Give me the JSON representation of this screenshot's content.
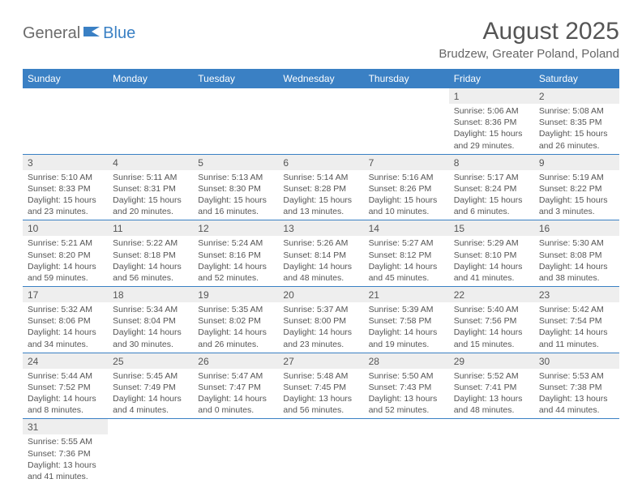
{
  "logo": {
    "part1": "General",
    "part2": "Blue"
  },
  "title": "August 2025",
  "location": "Brudzew, Greater Poland, Poland",
  "colors": {
    "header_bg": "#3a80c4",
    "header_text": "#ffffff",
    "daynum_bg": "#eeeeee",
    "border": "#3a80c4",
    "text": "#555555"
  },
  "weekdays": [
    "Sunday",
    "Monday",
    "Tuesday",
    "Wednesday",
    "Thursday",
    "Friday",
    "Saturday"
  ],
  "weeks": [
    [
      null,
      null,
      null,
      null,
      null,
      {
        "d": "1",
        "sr": "5:06 AM",
        "ss": "8:36 PM",
        "dl": "15 hours and 29 minutes."
      },
      {
        "d": "2",
        "sr": "5:08 AM",
        "ss": "8:35 PM",
        "dl": "15 hours and 26 minutes."
      }
    ],
    [
      {
        "d": "3",
        "sr": "5:10 AM",
        "ss": "8:33 PM",
        "dl": "15 hours and 23 minutes."
      },
      {
        "d": "4",
        "sr": "5:11 AM",
        "ss": "8:31 PM",
        "dl": "15 hours and 20 minutes."
      },
      {
        "d": "5",
        "sr": "5:13 AM",
        "ss": "8:30 PM",
        "dl": "15 hours and 16 minutes."
      },
      {
        "d": "6",
        "sr": "5:14 AM",
        "ss": "8:28 PM",
        "dl": "15 hours and 13 minutes."
      },
      {
        "d": "7",
        "sr": "5:16 AM",
        "ss": "8:26 PM",
        "dl": "15 hours and 10 minutes."
      },
      {
        "d": "8",
        "sr": "5:17 AM",
        "ss": "8:24 PM",
        "dl": "15 hours and 6 minutes."
      },
      {
        "d": "9",
        "sr": "5:19 AM",
        "ss": "8:22 PM",
        "dl": "15 hours and 3 minutes."
      }
    ],
    [
      {
        "d": "10",
        "sr": "5:21 AM",
        "ss": "8:20 PM",
        "dl": "14 hours and 59 minutes."
      },
      {
        "d": "11",
        "sr": "5:22 AM",
        "ss": "8:18 PM",
        "dl": "14 hours and 56 minutes."
      },
      {
        "d": "12",
        "sr": "5:24 AM",
        "ss": "8:16 PM",
        "dl": "14 hours and 52 minutes."
      },
      {
        "d": "13",
        "sr": "5:26 AM",
        "ss": "8:14 PM",
        "dl": "14 hours and 48 minutes."
      },
      {
        "d": "14",
        "sr": "5:27 AM",
        "ss": "8:12 PM",
        "dl": "14 hours and 45 minutes."
      },
      {
        "d": "15",
        "sr": "5:29 AM",
        "ss": "8:10 PM",
        "dl": "14 hours and 41 minutes."
      },
      {
        "d": "16",
        "sr": "5:30 AM",
        "ss": "8:08 PM",
        "dl": "14 hours and 38 minutes."
      }
    ],
    [
      {
        "d": "17",
        "sr": "5:32 AM",
        "ss": "8:06 PM",
        "dl": "14 hours and 34 minutes."
      },
      {
        "d": "18",
        "sr": "5:34 AM",
        "ss": "8:04 PM",
        "dl": "14 hours and 30 minutes."
      },
      {
        "d": "19",
        "sr": "5:35 AM",
        "ss": "8:02 PM",
        "dl": "14 hours and 26 minutes."
      },
      {
        "d": "20",
        "sr": "5:37 AM",
        "ss": "8:00 PM",
        "dl": "14 hours and 23 minutes."
      },
      {
        "d": "21",
        "sr": "5:39 AM",
        "ss": "7:58 PM",
        "dl": "14 hours and 19 minutes."
      },
      {
        "d": "22",
        "sr": "5:40 AM",
        "ss": "7:56 PM",
        "dl": "14 hours and 15 minutes."
      },
      {
        "d": "23",
        "sr": "5:42 AM",
        "ss": "7:54 PM",
        "dl": "14 hours and 11 minutes."
      }
    ],
    [
      {
        "d": "24",
        "sr": "5:44 AM",
        "ss": "7:52 PM",
        "dl": "14 hours and 8 minutes."
      },
      {
        "d": "25",
        "sr": "5:45 AM",
        "ss": "7:49 PM",
        "dl": "14 hours and 4 minutes."
      },
      {
        "d": "26",
        "sr": "5:47 AM",
        "ss": "7:47 PM",
        "dl": "14 hours and 0 minutes."
      },
      {
        "d": "27",
        "sr": "5:48 AM",
        "ss": "7:45 PM",
        "dl": "13 hours and 56 minutes."
      },
      {
        "d": "28",
        "sr": "5:50 AM",
        "ss": "7:43 PM",
        "dl": "13 hours and 52 minutes."
      },
      {
        "d": "29",
        "sr": "5:52 AM",
        "ss": "7:41 PM",
        "dl": "13 hours and 48 minutes."
      },
      {
        "d": "30",
        "sr": "5:53 AM",
        "ss": "7:38 PM",
        "dl": "13 hours and 44 minutes."
      }
    ],
    [
      {
        "d": "31",
        "sr": "5:55 AM",
        "ss": "7:36 PM",
        "dl": "13 hours and 41 minutes."
      },
      null,
      null,
      null,
      null,
      null,
      null
    ]
  ],
  "labels": {
    "sunrise": "Sunrise:",
    "sunset": "Sunset:",
    "daylight": "Daylight:"
  }
}
